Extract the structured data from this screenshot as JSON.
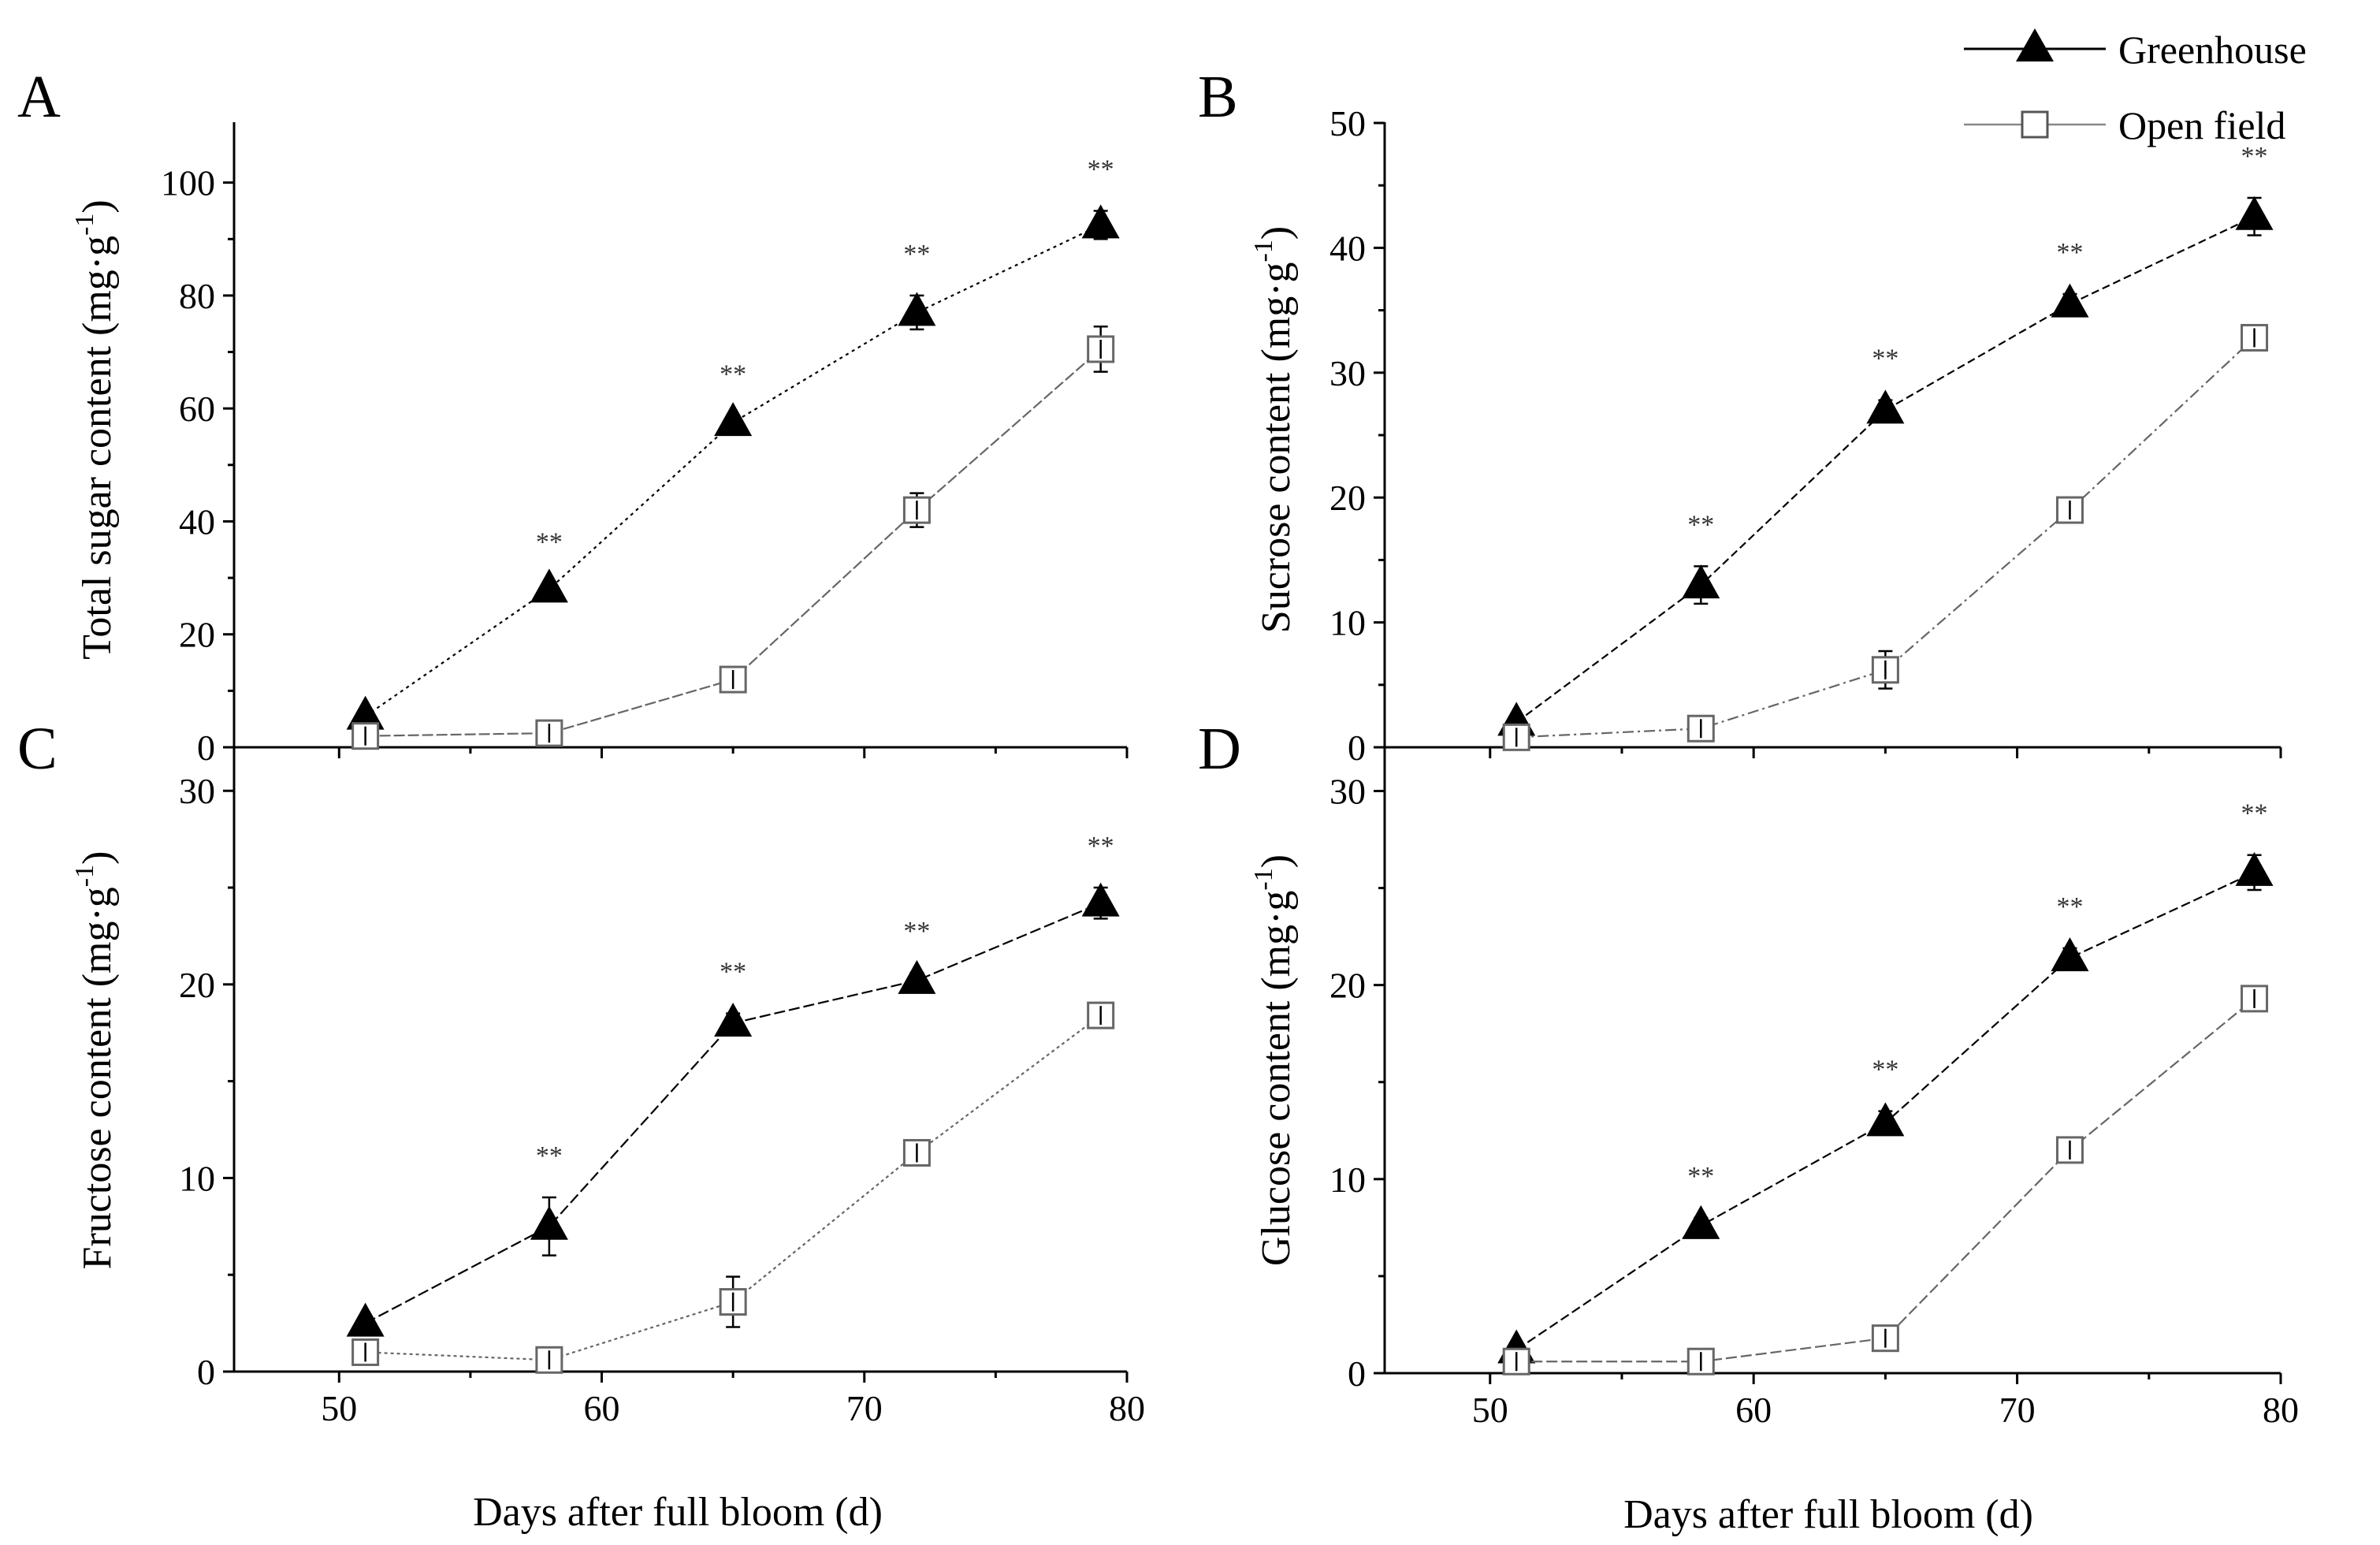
{
  "chart_data": [
    {
      "panel": "A",
      "type": "line",
      "title": "",
      "xlabel": "",
      "ylabel": "Total sugar content (mg·g^-1)",
      "ylabel_base": "Total sugar content (mg·g",
      "ylabel_sup": "-1",
      "ylabel_end": ")",
      "xlim": [
        46,
        80
      ],
      "ylim": [
        0,
        110
      ],
      "xticks": [],
      "yticks": [
        0,
        20,
        40,
        60,
        80,
        100
      ],
      "x": [
        51,
        58,
        65,
        72,
        79
      ],
      "significance": [
        "",
        "**",
        "**",
        "**",
        "**"
      ],
      "series": [
        {
          "name": "Greenhouse",
          "marker": "filled-triangle",
          "values": [
            5.5,
            28,
            57.5,
            77,
            92.5
          ],
          "errors": [
            0.5,
            1,
            1.2,
            3,
            2.5
          ]
        },
        {
          "name": "Open field",
          "marker": "open-square",
          "values": [
            2,
            2.5,
            12,
            42,
            70.5
          ],
          "errors": [
            0.5,
            0.5,
            1.5,
            3,
            4
          ]
        }
      ]
    },
    {
      "panel": "B",
      "type": "line",
      "title": "",
      "xlabel": "",
      "ylabel": "Sucrose content (mg·g^-1)",
      "ylabel_base": "Sucrose content (mg·g",
      "ylabel_sup": "-1",
      "ylabel_end": ")",
      "xlim": [
        46,
        80
      ],
      "ylim": [
        0,
        50
      ],
      "xticks": [],
      "yticks": [
        0,
        10,
        20,
        30,
        40,
        50
      ],
      "x": [
        51,
        58,
        65,
        72,
        79
      ],
      "significance": [
        "",
        "**",
        "**",
        "**",
        "**"
      ],
      "series": [
        {
          "name": "Greenhouse",
          "marker": "filled-triangle",
          "values": [
            2,
            13,
            27,
            35.5,
            42.5
          ],
          "errors": [
            0.3,
            1.5,
            0.8,
            0.8,
            1.5
          ]
        },
        {
          "name": "Open field",
          "marker": "open-square",
          "values": [
            0.8,
            1.5,
            6.2,
            19,
            32.8
          ],
          "errors": [
            0.3,
            0.8,
            1.5,
            0.5,
            0.8
          ]
        }
      ]
    },
    {
      "panel": "C",
      "type": "line",
      "title": "",
      "xlabel": "Days after full bloom (d)",
      "ylabel": "Fructose content (mg·g^-1)",
      "ylabel_base": "Fructose content (mg·g",
      "ylabel_sup": "-1",
      "ylabel_end": ")",
      "xlim": [
        46,
        80
      ],
      "ylim": [
        0,
        34
      ],
      "xticks": [
        50,
        60,
        70,
        80
      ],
      "yticks": [
        0,
        10,
        20,
        30
      ],
      "x": [
        51,
        58,
        65,
        72,
        79
      ],
      "significance": [
        "",
        "**",
        "**",
        "**",
        "**"
      ],
      "series": [
        {
          "name": "Greenhouse",
          "marker": "filled-triangle",
          "values": [
            2.5,
            7.5,
            18,
            20.2,
            24.2
          ],
          "errors": [
            0.3,
            1.5,
            0.5,
            0.4,
            0.8
          ]
        },
        {
          "name": "Open field",
          "marker": "open-square",
          "values": [
            1,
            0.6,
            3.6,
            11.3,
            18.4
          ],
          "errors": [
            0.3,
            0.5,
            1.3,
            0.6,
            0.6
          ]
        }
      ]
    },
    {
      "panel": "D",
      "type": "line",
      "title": "",
      "xlabel": "Days after full bloom (d)",
      "ylabel": "Glucose content (mg·g^-1)",
      "ylabel_base": "Glucose content (mg·g",
      "ylabel_sup": "-1",
      "ylabel_end": ")",
      "xlim": [
        46,
        80
      ],
      "ylim": [
        0,
        34
      ],
      "xticks": [
        50,
        60,
        70,
        80
      ],
      "yticks": [
        0,
        10,
        20,
        30
      ],
      "x": [
        51,
        58,
        65,
        72,
        79
      ],
      "significance": [
        "",
        "**",
        "**",
        "**",
        "**"
      ],
      "series": [
        {
          "name": "Greenhouse",
          "marker": "filled-triangle",
          "values": [
            1.2,
            7.6,
            12.9,
            21.4,
            25.8
          ],
          "errors": [
            0.3,
            0.4,
            0.6,
            0.5,
            0.9
          ]
        },
        {
          "name": "Open field",
          "marker": "open-square",
          "values": [
            0.6,
            0.6,
            1.8,
            11.5,
            19.3
          ],
          "errors": [
            0.2,
            0.3,
            0.6,
            0.6,
            0.6
          ]
        }
      ]
    }
  ],
  "legend": {
    "position": "top-right",
    "items": [
      {
        "label": "Greenhouse",
        "marker": "filled-triangle"
      },
      {
        "label": "Open field",
        "marker": "open-square"
      }
    ]
  },
  "colors": {
    "greenhouse_fill": "#000000",
    "greenhouse_line": "#000000",
    "open_field_stroke": "#666666",
    "open_field_fill": "#ffffff"
  }
}
